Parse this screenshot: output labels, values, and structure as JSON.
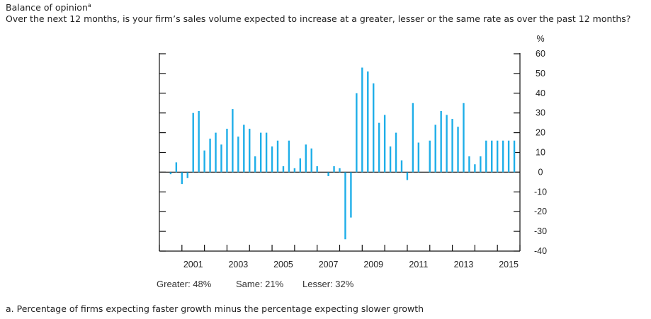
{
  "header": {
    "title": "Balance of opinion",
    "title_footnote_mark": "a",
    "question": "Over the next 12 months, is your firm’s sales volume expected to increase at a greater, lesser or the same rate as over the past 12 months?"
  },
  "chart_data": {
    "type": "bar",
    "ylabel": "%",
    "ylim": [
      -40,
      60
    ],
    "yticks": [
      60,
      50,
      40,
      30,
      20,
      10,
      0,
      -10,
      -20,
      -30,
      -40
    ],
    "xlim": [
      2000.0,
      2016.0
    ],
    "xticks": [
      "2001",
      "2003",
      "2005",
      "2007",
      "2009",
      "2011",
      "2013",
      "2015"
    ],
    "xtick_values": [
      2001,
      2003,
      2005,
      2007,
      2009,
      2011,
      2013,
      2015
    ],
    "bar_color": "#1eaee8",
    "x": [
      2000.5,
      2000.75,
      2001.0,
      2001.25,
      2001.5,
      2001.75,
      2002.0,
      2002.25,
      2002.5,
      2002.75,
      2003.0,
      2003.25,
      2003.5,
      2003.75,
      2004.0,
      2004.25,
      2004.5,
      2004.75,
      2005.0,
      2005.25,
      2005.5,
      2005.75,
      2006.0,
      2006.25,
      2006.5,
      2006.75,
      2007.0,
      2007.25,
      2007.5,
      2007.75,
      2008.0,
      2008.25,
      2008.5,
      2008.75,
      2009.0,
      2009.25,
      2009.5,
      2009.75,
      2010.0,
      2010.25,
      2010.5,
      2010.75,
      2011.0,
      2011.25,
      2011.5,
      2011.75,
      2012.0,
      2012.25,
      2012.5,
      2012.75,
      2013.0,
      2013.25,
      2013.5,
      2013.75,
      2014.0,
      2014.25,
      2014.5,
      2014.75,
      2015.0,
      2015.25,
      2015.5,
      2015.75
    ],
    "values": [
      -1,
      5,
      -6,
      -3,
      30,
      31,
      11,
      17,
      20,
      14,
      22,
      32,
      18,
      24,
      22,
      8,
      20,
      20,
      13,
      16,
      3,
      16,
      2,
      7,
      14,
      12,
      3,
      0,
      -2,
      3,
      2,
      -34,
      -23,
      40,
      53,
      51,
      45,
      25,
      29,
      13,
      20,
      6,
      -4,
      35,
      15,
      0,
      16,
      24,
      31,
      29,
      27,
      23,
      35,
      8,
      4,
      8,
      16,
      16,
      16,
      16,
      16,
      16
    ]
  },
  "legend": {
    "greater": "Greater: 48%",
    "same": "Same: 21%",
    "lesser": "Lesser: 32%"
  },
  "footnote": "a. Percentage of firms expecting faster growth minus the percentage expecting slower growth"
}
